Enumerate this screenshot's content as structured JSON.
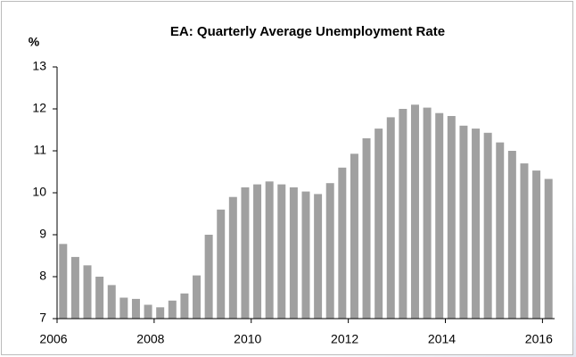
{
  "chart_data": {
    "type": "bar",
    "title": "EA: Quarterly Average Unemployment Rate",
    "y_label": "%",
    "categories": [
      "2006",
      null,
      null,
      null,
      null,
      null,
      null,
      null,
      "2008",
      null,
      null,
      null,
      null,
      null,
      null,
      null,
      "2010",
      null,
      null,
      null,
      null,
      null,
      null,
      null,
      "2012",
      null,
      null,
      null,
      null,
      null,
      null,
      null,
      "2014",
      null,
      null,
      null,
      null,
      null,
      null,
      null,
      "2016"
    ],
    "values": [
      8.78,
      8.47,
      8.27,
      8.0,
      7.8,
      7.5,
      7.47,
      7.33,
      7.27,
      7.43,
      7.6,
      8.03,
      9.0,
      9.6,
      9.9,
      10.13,
      10.2,
      10.27,
      10.2,
      10.13,
      10.03,
      9.97,
      10.23,
      10.6,
      10.93,
      11.3,
      11.53,
      11.8,
      12.0,
      12.1,
      12.03,
      11.9,
      11.83,
      11.6,
      11.53,
      11.43,
      11.2,
      11.0,
      10.7,
      10.53,
      10.33
    ],
    "color": "#a0a0a0",
    "ylim": [
      7,
      13
    ],
    "yticks": [
      7,
      8,
      9,
      10,
      11,
      12,
      13
    ],
    "grid": false
  }
}
